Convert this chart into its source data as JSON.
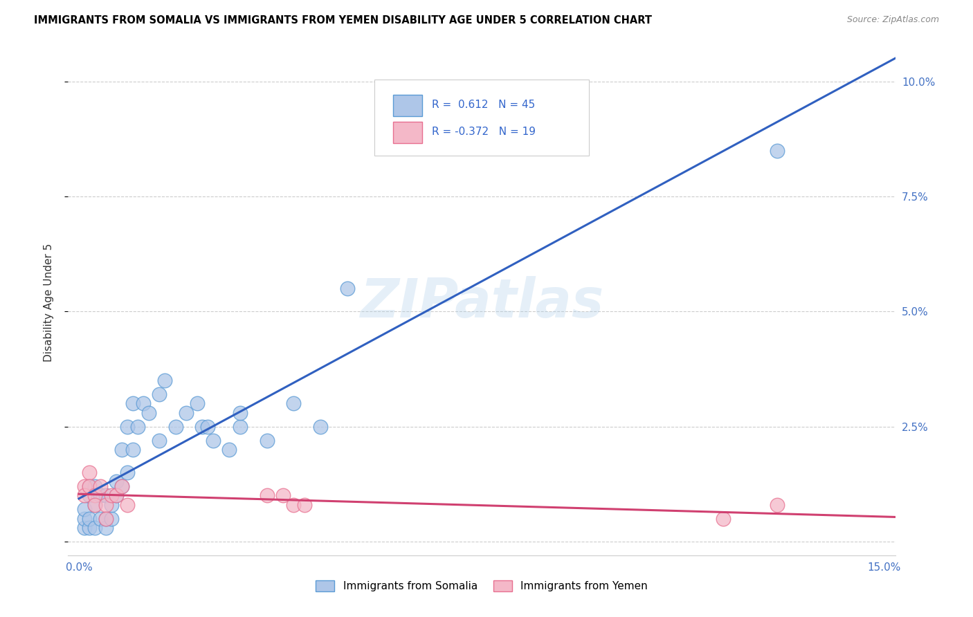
{
  "title": "IMMIGRANTS FROM SOMALIA VS IMMIGRANTS FROM YEMEN DISABILITY AGE UNDER 5 CORRELATION CHART",
  "source": "Source: ZipAtlas.com",
  "ylabel": "Disability Age Under 5",
  "xlim": [
    -0.002,
    0.152
  ],
  "ylim": [
    -0.003,
    0.107
  ],
  "somalia_color": "#aec6e8",
  "somalia_edge_color": "#5b9bd5",
  "yemen_color": "#f4b8c8",
  "yemen_edge_color": "#e87090",
  "somalia_line_color": "#3060C0",
  "yemen_line_color": "#D04070",
  "somalia_R": 0.612,
  "somalia_N": 45,
  "yemen_R": -0.372,
  "yemen_N": 19,
  "watermark": "ZIPatlas",
  "background_color": "#ffffff",
  "grid_color": "#cccccc",
  "somalia_x": [
    0.001,
    0.001,
    0.001,
    0.002,
    0.002,
    0.002,
    0.002,
    0.003,
    0.003,
    0.003,
    0.004,
    0.004,
    0.005,
    0.005,
    0.005,
    0.006,
    0.006,
    0.007,
    0.007,
    0.008,
    0.008,
    0.009,
    0.009,
    0.01,
    0.01,
    0.011,
    0.012,
    0.013,
    0.015,
    0.015,
    0.016,
    0.018,
    0.02,
    0.022,
    0.023,
    0.024,
    0.025,
    0.028,
    0.03,
    0.03,
    0.035,
    0.04,
    0.045,
    0.05,
    0.13
  ],
  "somalia_y": [
    0.003,
    0.005,
    0.007,
    0.003,
    0.005,
    0.01,
    0.012,
    0.003,
    0.008,
    0.012,
    0.005,
    0.01,
    0.003,
    0.005,
    0.01,
    0.005,
    0.008,
    0.01,
    0.013,
    0.012,
    0.02,
    0.015,
    0.025,
    0.02,
    0.03,
    0.025,
    0.03,
    0.028,
    0.022,
    0.032,
    0.035,
    0.025,
    0.028,
    0.03,
    0.025,
    0.025,
    0.022,
    0.02,
    0.025,
    0.028,
    0.022,
    0.03,
    0.025,
    0.055,
    0.085
  ],
  "yemen_x": [
    0.001,
    0.001,
    0.002,
    0.002,
    0.003,
    0.003,
    0.004,
    0.005,
    0.005,
    0.006,
    0.007,
    0.008,
    0.009,
    0.035,
    0.038,
    0.04,
    0.042,
    0.12,
    0.13
  ],
  "yemen_y": [
    0.012,
    0.01,
    0.015,
    0.012,
    0.01,
    0.008,
    0.012,
    0.008,
    0.005,
    0.01,
    0.01,
    0.012,
    0.008,
    0.01,
    0.01,
    0.008,
    0.008,
    0.005,
    0.008
  ],
  "legend_R_label1": "R =  0.612   N = 45",
  "legend_R_label2": "R = -0.372   N = 19",
  "bottom_legend1": "Immigrants from Somalia",
  "bottom_legend2": "Immigrants from Yemen"
}
